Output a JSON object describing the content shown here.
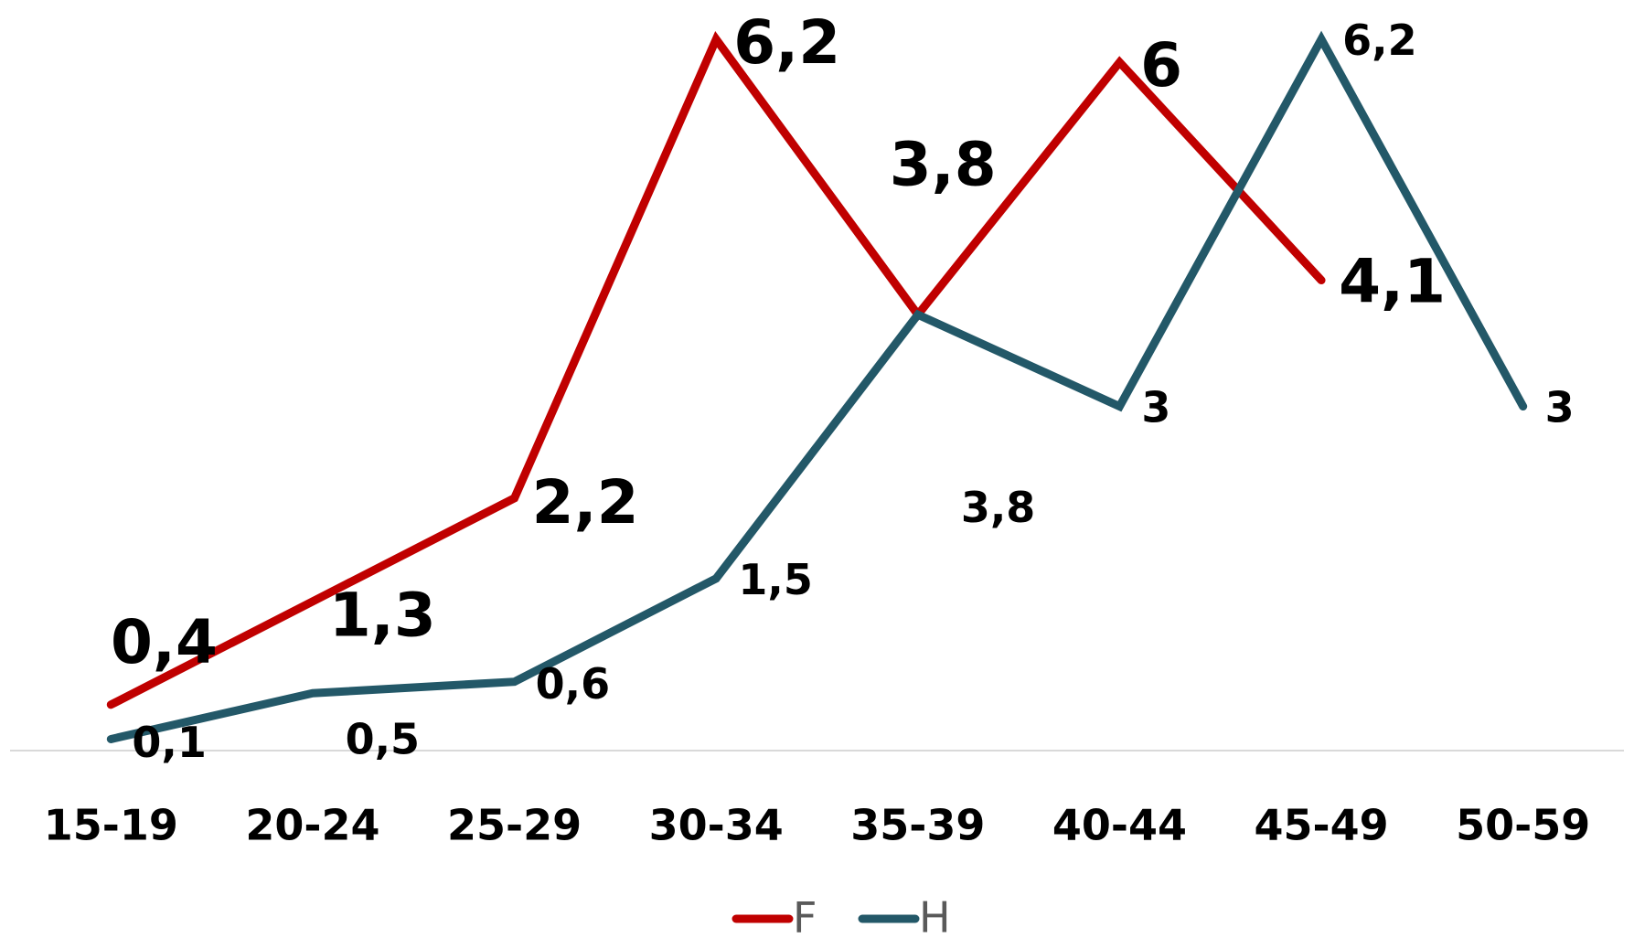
{
  "chart_data": {
    "type": "line",
    "categories": [
      "15-19",
      "20-24",
      "25-29",
      "30-34",
      "35-39",
      "40-44",
      "45-49",
      "50-59"
    ],
    "series": [
      {
        "name": "F",
        "color": "#c00000",
        "values": [
          0.4,
          1.3,
          2.2,
          6.2,
          3.8,
          6,
          4.1,
          null
        ],
        "value_labels": [
          "0,4",
          "1,3",
          "2,2",
          "6,2",
          "3,8",
          "6",
          "4,1",
          null
        ]
      },
      {
        "name": "H",
        "color": "#235868",
        "values": [
          0.1,
          0.5,
          0.6,
          1.5,
          3.8,
          3,
          6.2,
          3
        ],
        "value_labels": [
          "0,1",
          "0,5",
          "0,6",
          "1,5",
          "3,8",
          "3",
          "6,2",
          "3"
        ]
      }
    ],
    "ylim": [
      0,
      6.2
    ],
    "legend": "bottom"
  }
}
